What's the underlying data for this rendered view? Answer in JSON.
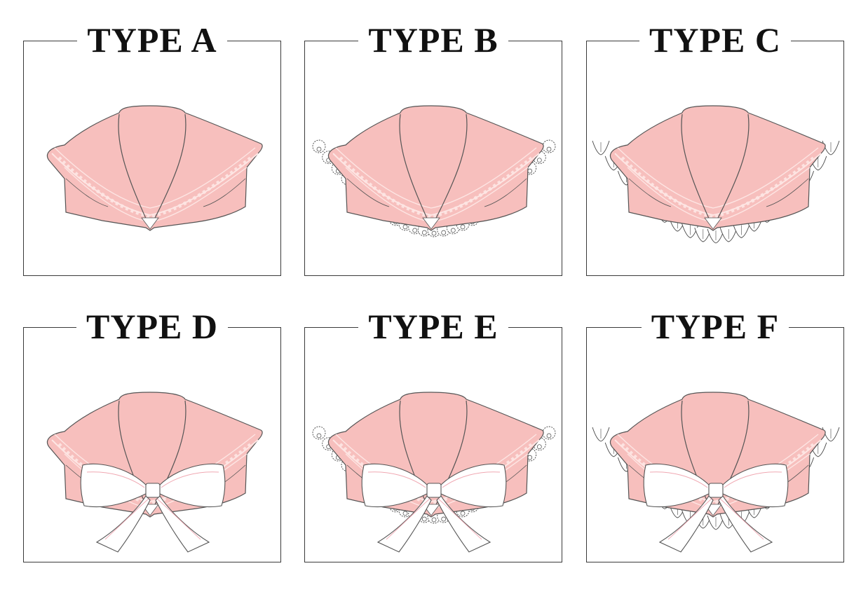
{
  "colors": {
    "collar_fill": "#f7bfbd",
    "collar_outline": "#555555",
    "trim_stripe": "#fde5e3",
    "lace_outline": "#444444",
    "bow_fill": "#ffffff",
    "bow_accent": "#f0a8b2"
  },
  "panels": [
    {
      "title": "TYPE A",
      "edge": "none",
      "bow": false
    },
    {
      "title": "TYPE B",
      "edge": "lace",
      "bow": false
    },
    {
      "title": "TYPE C",
      "edge": "ruffle",
      "bow": false
    },
    {
      "title": "TYPE D",
      "edge": "none",
      "bow": true
    },
    {
      "title": "TYPE E",
      "edge": "lace",
      "bow": true
    },
    {
      "title": "TYPE F",
      "edge": "ruffle",
      "bow": true
    }
  ]
}
